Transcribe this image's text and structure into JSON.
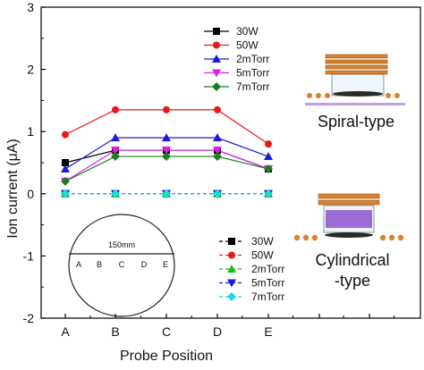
{
  "chart_data": {
    "type": "line",
    "xlabel": "Probe Position",
    "ylabel": "Ion current (μA)",
    "categories": [
      "A",
      "B",
      "C",
      "D",
      "E"
    ],
    "ylim": [
      -2,
      3
    ],
    "yticks": [
      -2,
      -1,
      0,
      1,
      2,
      3
    ],
    "grid": false,
    "groups": [
      {
        "name": "Spiral-type",
        "line_style": "solid",
        "series": [
          {
            "name": "30W",
            "color": "#000000",
            "marker": "square",
            "values": [
              0.5,
              0.7,
              0.7,
              0.7,
              0.4
            ]
          },
          {
            "name": "50W",
            "color": "#e8191c",
            "marker": "circle",
            "values": [
              0.95,
              1.35,
              1.35,
              1.35,
              0.8
            ]
          },
          {
            "name": "2mTorr",
            "color": "#1a1adb",
            "marker": "triangle-up",
            "values": [
              0.4,
              0.9,
              0.9,
              0.9,
              0.6
            ]
          },
          {
            "name": "5mTorr",
            "color": "#e020e0",
            "marker": "triangle-down",
            "values": [
              0.2,
              0.7,
              0.7,
              0.7,
              0.4
            ]
          },
          {
            "name": "7mTorr",
            "color": "#1e7d1e",
            "marker": "diamond",
            "values": [
              0.2,
              0.6,
              0.6,
              0.6,
              0.4
            ]
          }
        ]
      },
      {
        "name": "Cylindrical-type",
        "line_style": "dashed",
        "series": [
          {
            "name": "30W",
            "color": "#000000",
            "marker": "square",
            "values": [
              0,
              0,
              0,
              0,
              0
            ]
          },
          {
            "name": "50W",
            "color": "#e8191c",
            "marker": "circle",
            "values": [
              0,
              0,
              0,
              0,
              0
            ]
          },
          {
            "name": "2mTorr",
            "color": "#19c019",
            "marker": "triangle-up",
            "values": [
              0,
              0,
              0,
              0,
              0
            ]
          },
          {
            "name": "5mTorr",
            "color": "#1a1adb",
            "marker": "triangle-down",
            "values": [
              0,
              0,
              0,
              0,
              0
            ]
          },
          {
            "name": "7mTorr",
            "color": "#18dcdc",
            "marker": "diamond",
            "values": [
              0,
              0,
              0,
              0,
              0
            ]
          }
        ]
      }
    ]
  },
  "inset_circle": {
    "diameter_label": "150mm",
    "positions": [
      "A",
      "B",
      "C",
      "D",
      "E"
    ]
  },
  "sources": {
    "spiral_label": "Spiral-type",
    "cylindrical_label_line1": "Cylindrical",
    "cylindrical_label_line2": "-type",
    "coil_color": "#d9822b",
    "chamber_fill_color": "#9b6bd6",
    "electrode_color": "#d9822b"
  }
}
